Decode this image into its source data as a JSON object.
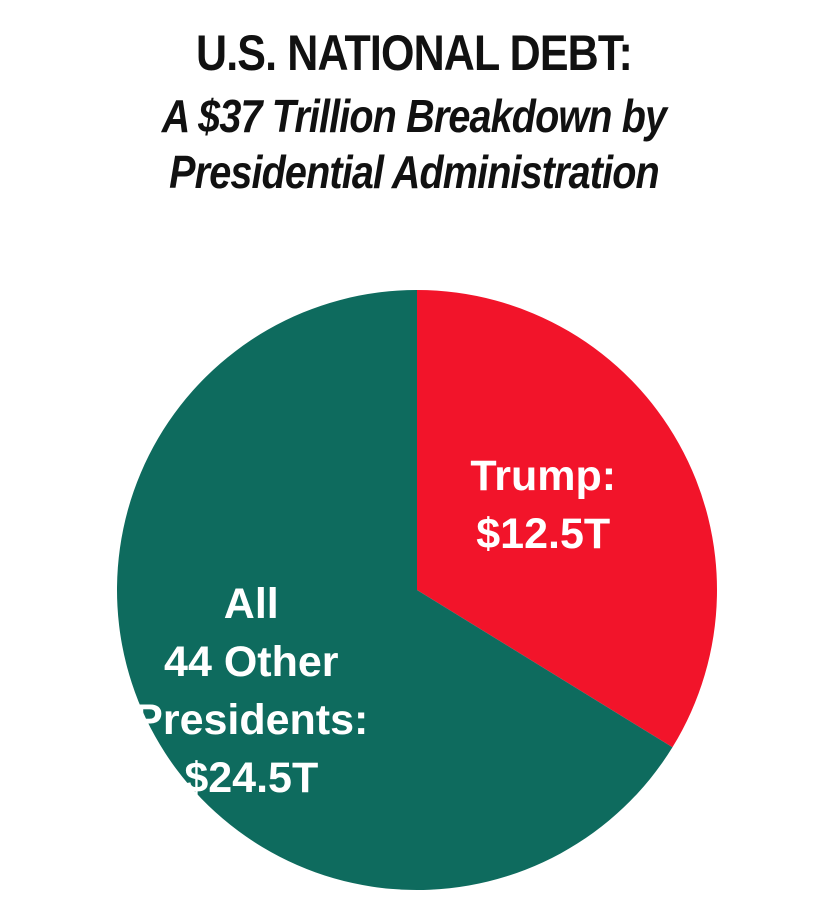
{
  "header": {
    "title": "U.S. NATIONAL DEBT:",
    "subtitle_line1": "A $37 Trillion Breakdown by",
    "subtitle_line2": "Presidential Administration"
  },
  "chart_data": {
    "type": "pie",
    "title": "U.S. NATIONAL DEBT:",
    "subtitle": "A $37 Trillion Breakdown by Presidential Administration",
    "slices": [
      {
        "name": "Trump",
        "value": 12.5,
        "label_lines": [
          "Trump:",
          "$12.5T"
        ],
        "color": "#f2142a"
      },
      {
        "name": "All 44 Other Presidents",
        "value": 24.5,
        "label_lines": [
          "All",
          "44 Other",
          "Presidents:",
          "$24.5T"
        ],
        "color": "#0e6b5e"
      }
    ],
    "start": "12 o'clock, clockwise",
    "legend": "none"
  }
}
